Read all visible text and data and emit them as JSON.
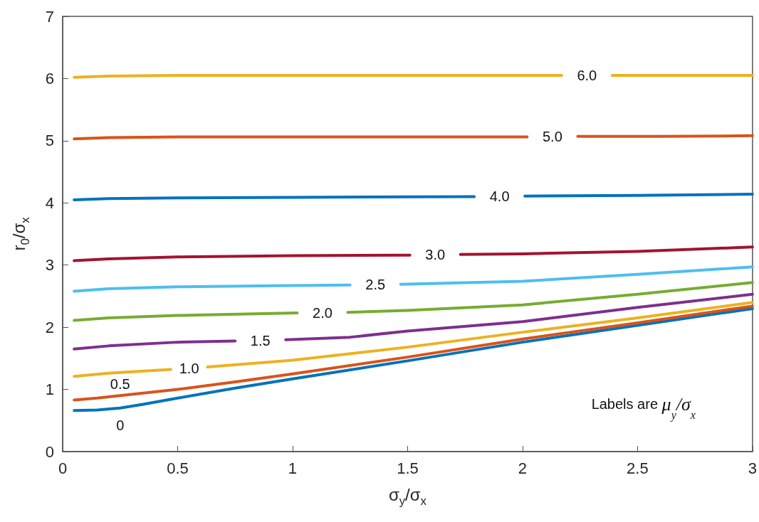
{
  "chart_data": {
    "type": "line",
    "xlabel": "σ$_{y}$/σ$_{x}$",
    "ylabel": "r$_{0}$/σ$_{x}$",
    "xlim": [
      0,
      3
    ],
    "xticks": [
      0,
      0.5,
      1,
      1.5,
      2,
      2.5,
      3
    ],
    "ylim": [
      0,
      7
    ],
    "yticks": [
      0,
      1,
      2,
      3,
      4,
      5,
      6,
      7
    ],
    "grid": false,
    "line_style": "solid",
    "marker": "none",
    "series": [
      {
        "name": "0",
        "color": "#0072bd",
        "x": [
          0.05,
          0.15,
          0.25,
          0.35,
          0.5,
          0.75,
          1,
          1.5,
          2,
          2.5,
          3
        ],
        "values": [
          0.66,
          0.67,
          0.7,
          0.76,
          0.86,
          1.02,
          1.17,
          1.46,
          1.76,
          2.03,
          2.3
        ]
      },
      {
        "name": "0.5",
        "color": "#d95319",
        "x": [
          0.05,
          0.15,
          0.25,
          0.5,
          0.75,
          1,
          1.5,
          2,
          2.5,
          3
        ],
        "values": [
          0.83,
          0.86,
          0.9,
          1.0,
          1.12,
          1.25,
          1.52,
          1.81,
          2.07,
          2.34
        ]
      },
      {
        "name": "1.0",
        "color": "#edb120",
        "x": [
          0.05,
          0.2,
          0.47,
          0.55,
          0.63,
          1,
          1.5,
          2,
          2.5,
          3
        ],
        "values": [
          1.21,
          1.26,
          1.32,
          null,
          1.36,
          1.47,
          1.68,
          1.92,
          2.15,
          2.4
        ]
      },
      {
        "name": "1.5",
        "color": "#7e2f8e",
        "x": [
          0.05,
          0.2,
          0.5,
          0.75,
          0.86,
          0.97,
          1.25,
          1.5,
          2,
          2.5,
          3
        ],
        "values": [
          1.65,
          1.7,
          1.76,
          1.78,
          null,
          1.8,
          1.84,
          1.94,
          2.09,
          2.32,
          2.53
        ]
      },
      {
        "name": "2.0",
        "color": "#77ac30",
        "x": [
          0.05,
          0.2,
          0.5,
          1.02,
          1.13,
          1.24,
          1.5,
          2,
          2.5,
          3
        ],
        "values": [
          2.11,
          2.15,
          2.19,
          2.23,
          null,
          2.24,
          2.27,
          2.36,
          2.53,
          2.72
        ]
      },
      {
        "name": "2.5",
        "color": "#4dbeee",
        "x": [
          0.05,
          0.2,
          0.5,
          1,
          1.25,
          1.36,
          1.47,
          2,
          2.5,
          3
        ],
        "values": [
          2.58,
          2.62,
          2.65,
          2.67,
          2.68,
          null,
          2.69,
          2.74,
          2.85,
          2.97
        ]
      },
      {
        "name": "3.0",
        "color": "#a2142f",
        "x": [
          0.05,
          0.2,
          0.5,
          1,
          1.51,
          1.62,
          1.73,
          2,
          2.5,
          3
        ],
        "values": [
          3.07,
          3.1,
          3.13,
          3.15,
          3.16,
          null,
          3.17,
          3.18,
          3.22,
          3.29
        ]
      },
      {
        "name": "4.0",
        "color": "#0072bd",
        "x": [
          0.05,
          0.2,
          0.5,
          1,
          1.79,
          1.9,
          2.01,
          2.5,
          3
        ],
        "values": [
          4.05,
          4.07,
          4.08,
          4.09,
          4.1,
          null,
          4.11,
          4.12,
          4.14
        ]
      },
      {
        "name": "5.0",
        "color": "#d95319",
        "x": [
          0.05,
          0.2,
          0.5,
          1,
          2.02,
          2.13,
          2.24,
          2.6,
          3
        ],
        "values": [
          5.03,
          5.05,
          5.06,
          5.06,
          5.06,
          null,
          5.07,
          5.07,
          5.08
        ]
      },
      {
        "name": "6.0",
        "color": "#edb120",
        "x": [
          0.05,
          0.2,
          0.5,
          1,
          2.17,
          2.28,
          2.39,
          3
        ],
        "values": [
          6.02,
          6.04,
          6.05,
          6.05,
          6.05,
          null,
          6.05,
          6.05
        ]
      }
    ],
    "annotations": [
      "Labels are μ$_{y}$/σ$_{x}$"
    ]
  }
}
